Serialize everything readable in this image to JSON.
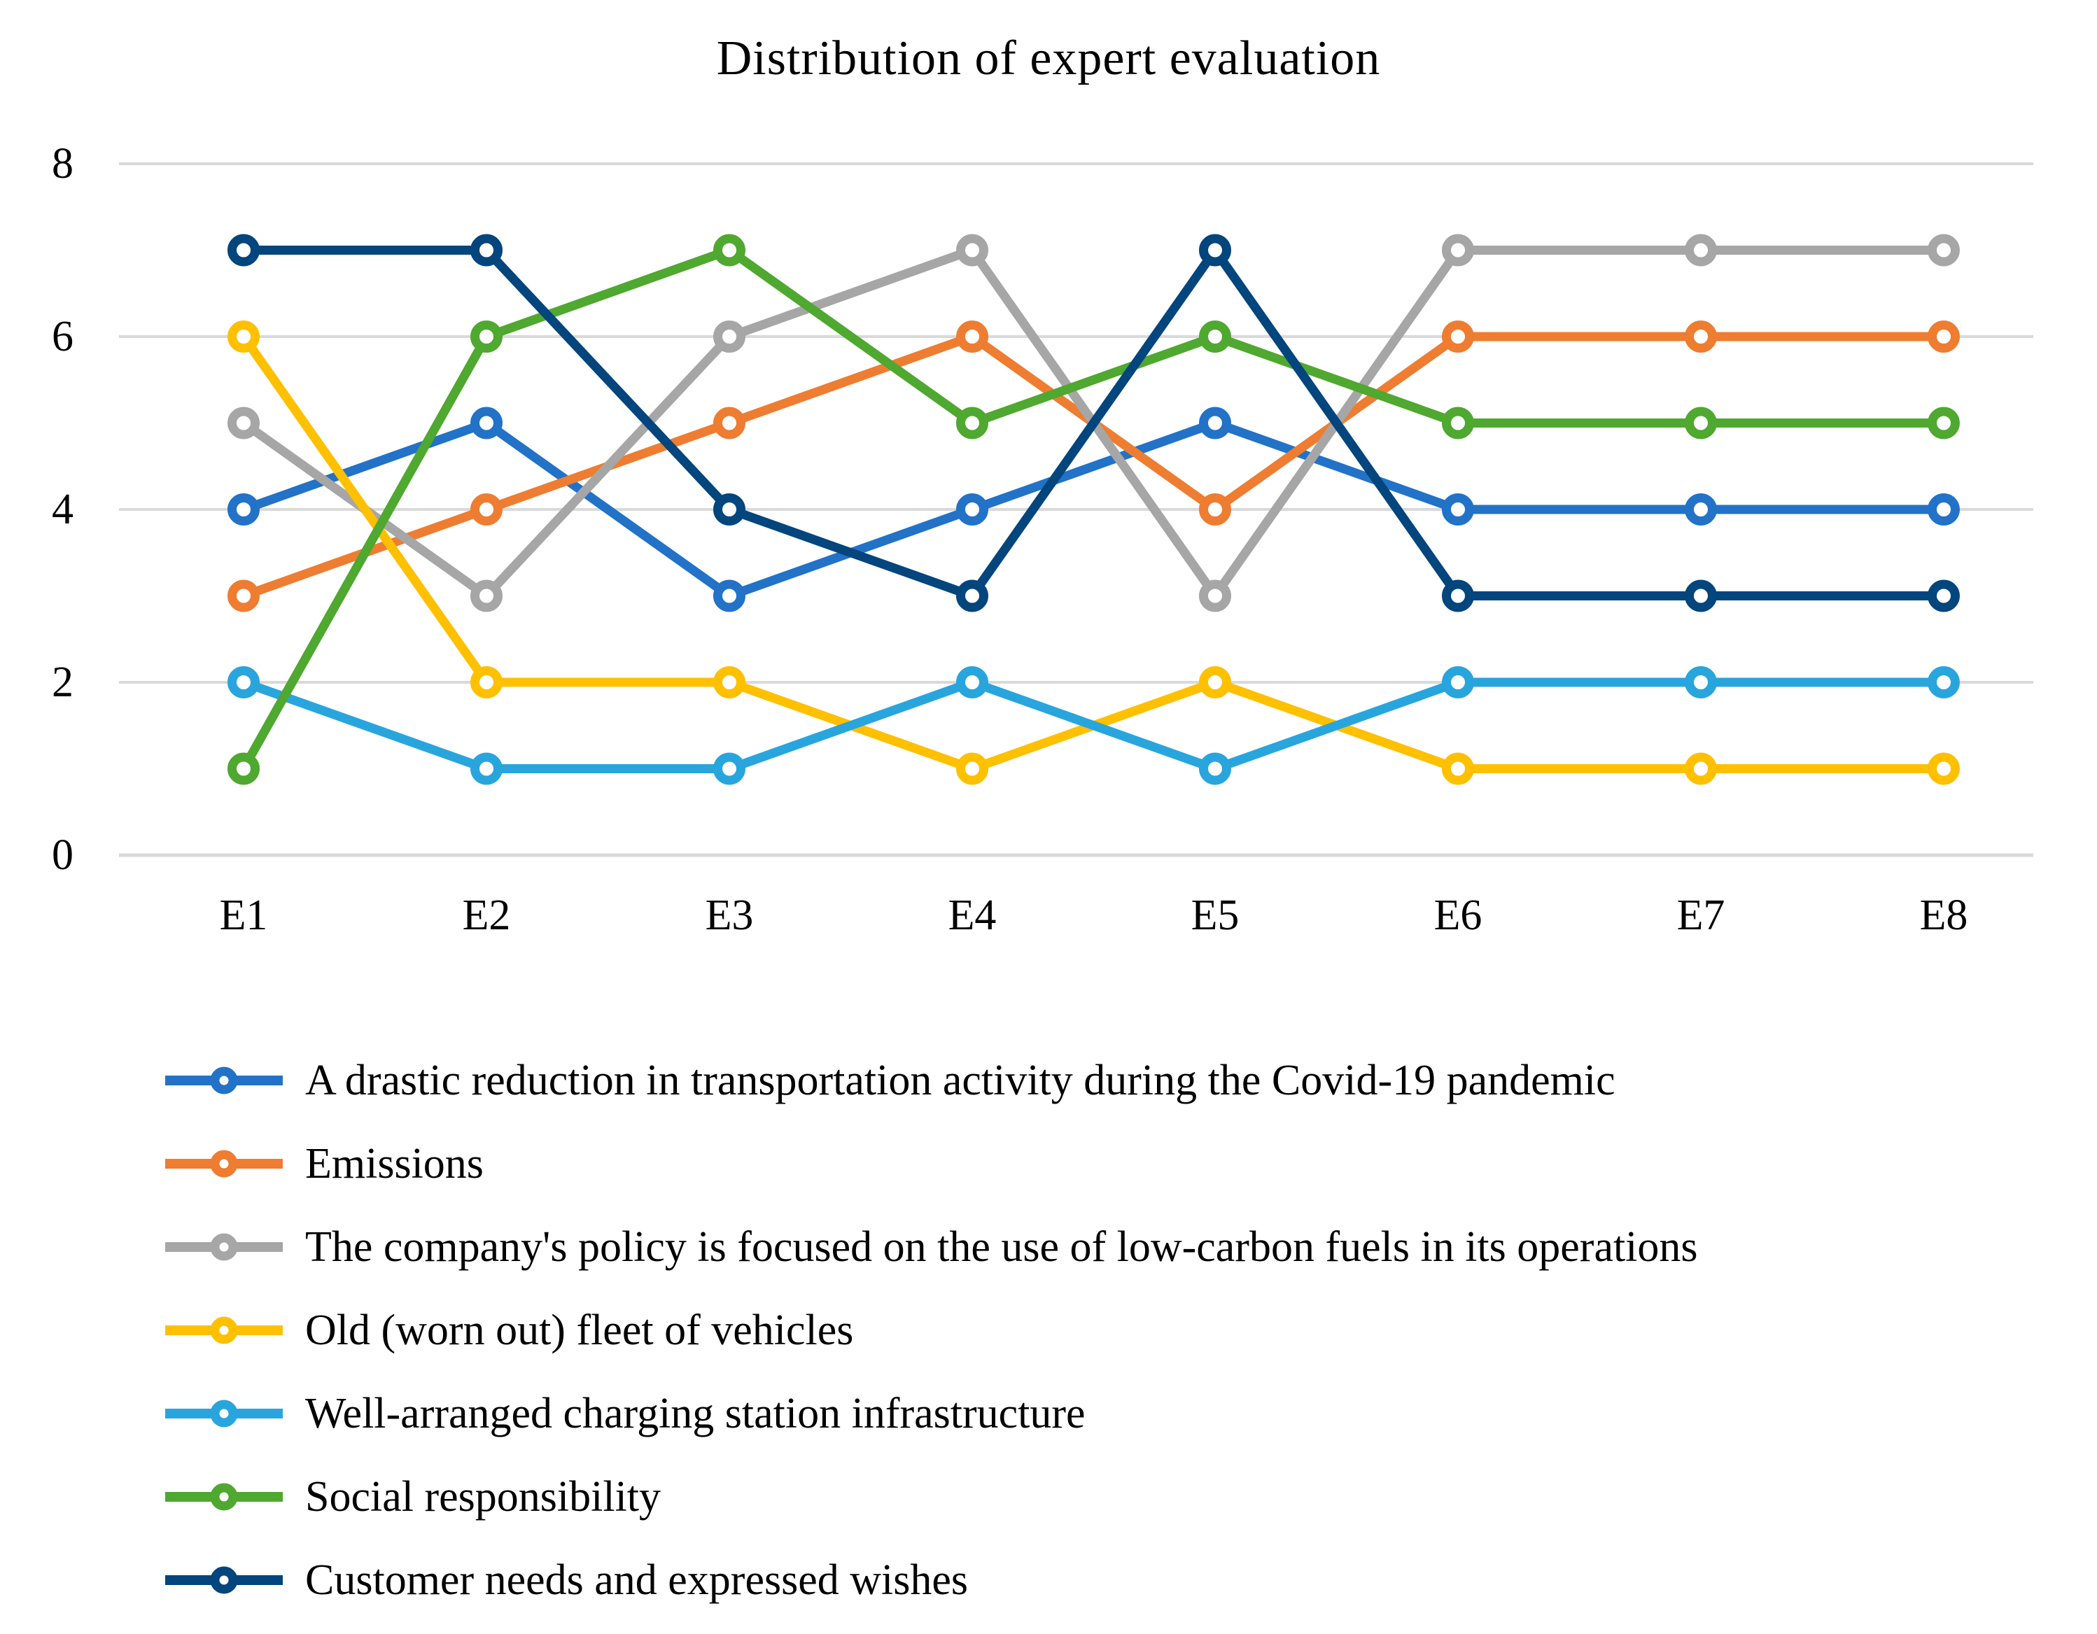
{
  "title": "Distribution of expert evaluation",
  "chart_data": {
    "type": "line",
    "title": "Distribution of expert evaluation",
    "categories": [
      "E1",
      "E2",
      "E3",
      "E4",
      "E5",
      "E6",
      "E7",
      "E8"
    ],
    "series": [
      {
        "name": "A drastic reduction in transportation activity during the Covid-19 pandemic",
        "color": "#2272C8",
        "values": [
          4,
          5,
          3,
          4,
          5,
          4,
          4,
          4
        ]
      },
      {
        "name": "Emissions",
        "color": "#EE7D31",
        "values": [
          3,
          4,
          5,
          6,
          4,
          6,
          6,
          6
        ]
      },
      {
        "name": "The company's policy is focused on the use of low-carbon fuels in its operations",
        "color": "#A6A6A6",
        "values": [
          5,
          3,
          6,
          7,
          3,
          7,
          7,
          7
        ]
      },
      {
        "name": "Old (worn out) fleet of vehicles",
        "color": "#FFC000",
        "values": [
          6,
          2,
          2,
          1,
          2,
          1,
          1,
          1
        ]
      },
      {
        "name": "Well-arranged charging station infrastructure",
        "color": "#29A5DE",
        "values": [
          2,
          1,
          1,
          2,
          1,
          2,
          2,
          2
        ]
      },
      {
        "name": "Social responsibility",
        "color": "#4FA82F",
        "values": [
          1,
          6,
          7,
          5,
          6,
          5,
          5,
          5
        ]
      },
      {
        "name": "Customer needs and expressed wishes",
        "color": "#03457D",
        "values": [
          7,
          7,
          4,
          3,
          7,
          3,
          3,
          3
        ]
      }
    ],
    "xlabel": "",
    "ylabel": "",
    "ylim": [
      0,
      8
    ],
    "yticks": [
      0,
      2,
      4,
      6,
      8
    ],
    "grid": "horizontal-only",
    "gridline_color": "#D9D9D9",
    "axis_text_color": "#000000",
    "marker": "open-circle",
    "legend_position": "bottom-left"
  }
}
